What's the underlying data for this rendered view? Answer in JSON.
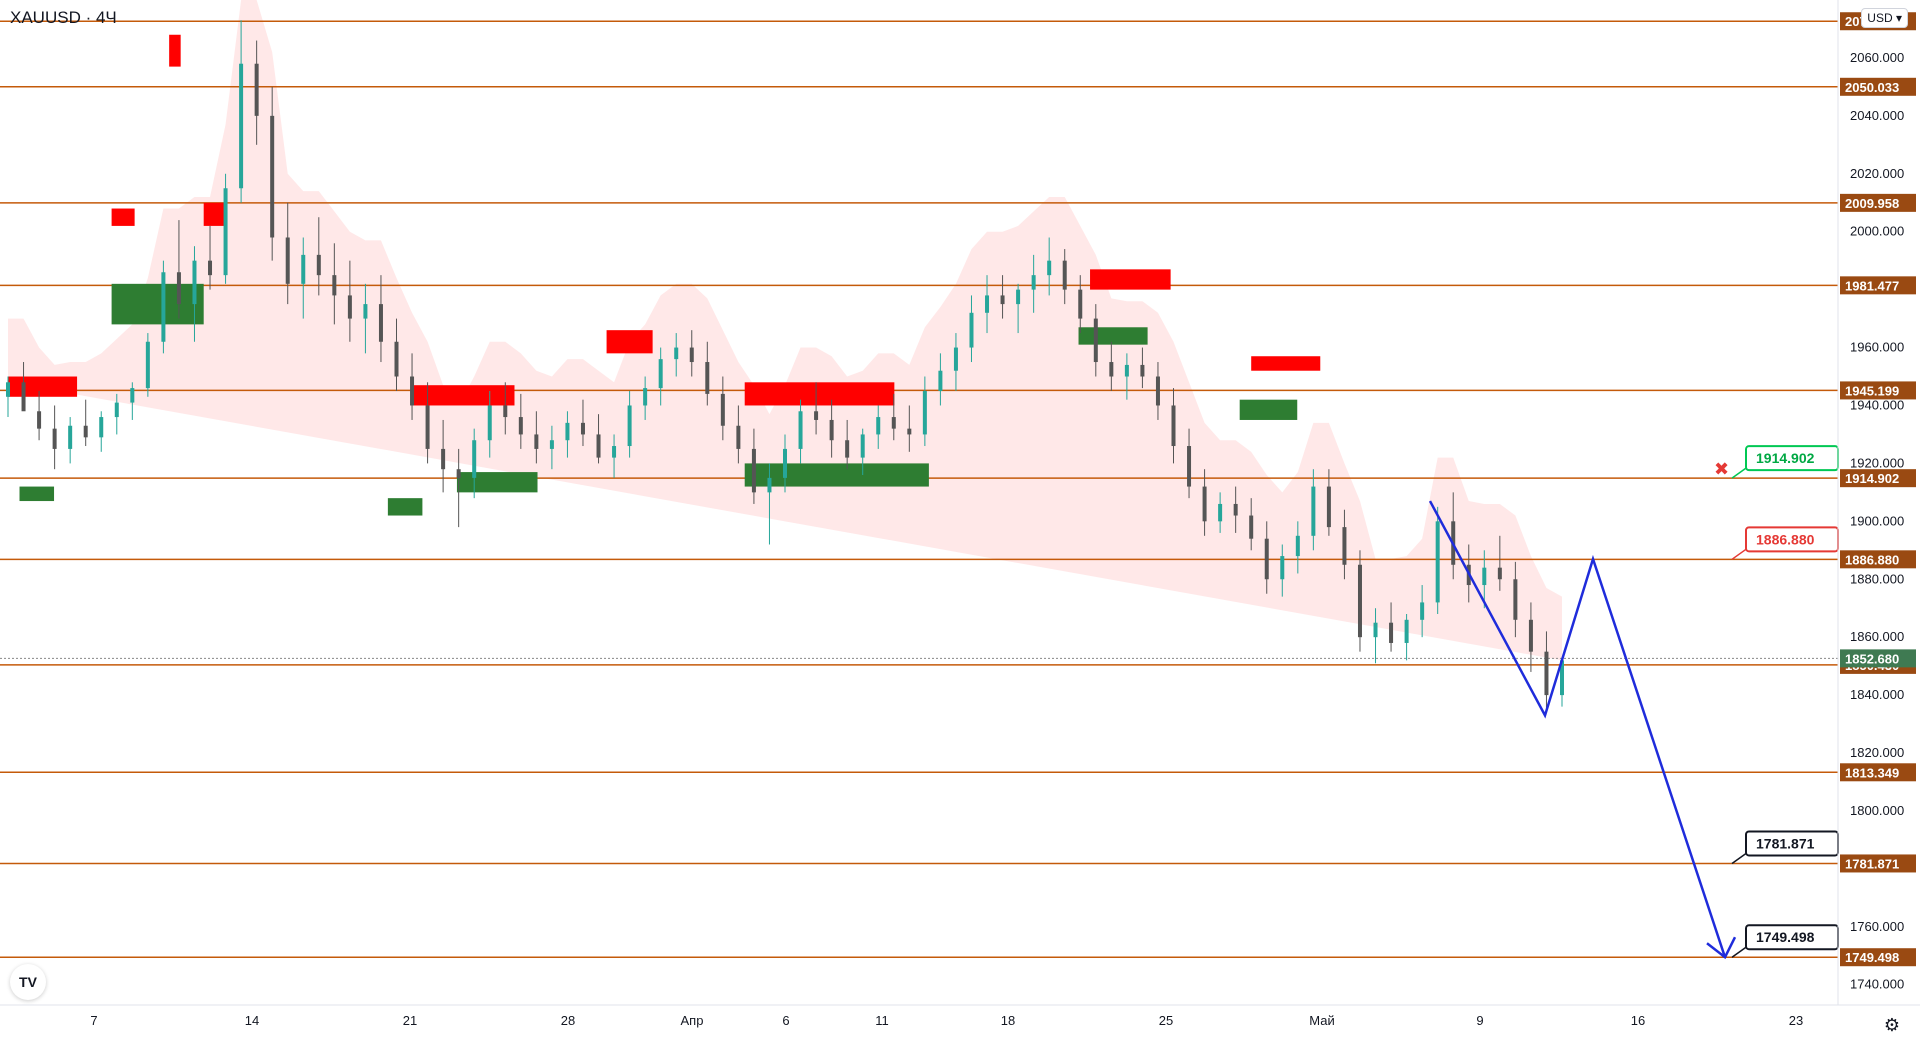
{
  "header": {
    "ticker": "XAUUSD · 4Ч",
    "currency": "USD",
    "axis_top_label": "2"
  },
  "colors": {
    "level_line": "#c45a0a",
    "level_label_bg": "#9a4a12",
    "supply_zone": "#ff0000",
    "demand_zone": "#2e7d32",
    "bull_candle": "#26a69a",
    "bear_candle": "#555555",
    "trail_red": "#b71c1c",
    "trail_green": "#43a047",
    "fill_red": "#ffdede",
    "fill_green": "#e3f3e3",
    "projection": "#1f2cdb",
    "current_price_bg": "#3f7a52"
  },
  "icons": {
    "logo": "tradingview-logo-icon",
    "settings": "gear-icon",
    "cross": "red-x-mark-icon"
  },
  "chart_data": {
    "type": "candlestick",
    "ylim": [
      1733,
      2080
    ],
    "y_ticks": [
      "2060.000",
      "2040.000",
      "2020.000",
      "2000.000",
      "1960.000",
      "1940.000",
      "1920.000",
      "1900.000",
      "1880.000",
      "1860.000",
      "1840.000",
      "1820.000",
      "1800.000",
      "1760.000",
      "1740.000"
    ],
    "y_tick_values": [
      2060,
      2040,
      2020,
      2000,
      1960,
      1940,
      1920,
      1900,
      1880,
      1860,
      1840,
      1820,
      1800,
      1760,
      1740
    ],
    "x_ticks": [
      "7",
      "14",
      "21",
      "28",
      "Апр",
      "6",
      "11",
      "18",
      "25",
      "Май",
      "9",
      "16",
      "23"
    ],
    "levels": [
      {
        "label": "2072.667",
        "value": 2072.667
      },
      {
        "label": "2050.033",
        "value": 2050.033
      },
      {
        "label": "2009.958",
        "value": 2009.958
      },
      {
        "label": "1981.477",
        "value": 1981.477
      },
      {
        "label": "1945.199",
        "value": 1945.199
      },
      {
        "label": "1914.902",
        "value": 1914.902
      },
      {
        "label": "1886.880",
        "value": 1886.88
      },
      {
        "label": "1850.430",
        "value": 1850.43
      },
      {
        "label": "1813.349",
        "value": 1813.349
      },
      {
        "label": "1781.871",
        "value": 1781.871
      },
      {
        "label": "1749.498",
        "value": 1749.498
      }
    ],
    "current_price": {
      "label": "1852.680",
      "value": 1852.68
    },
    "callouts": [
      {
        "label": "1914.902",
        "value": 1914.902,
        "style": "green"
      },
      {
        "label": "1886.880",
        "value": 1886.88,
        "style": "red"
      },
      {
        "label": "1781.871",
        "value": 1781.871,
        "style": "black"
      },
      {
        "label": "1749.498",
        "value": 1749.498,
        "style": "black"
      }
    ],
    "projection_path": [
      [
        1910,
        1875
      ],
      [
        1930,
        1785
      ],
      [
        1950,
        1830
      ],
      [
        1975,
        1780
      ],
      [
        1999,
        1860
      ],
      [
        2030,
        1960
      ],
      [
        2055,
        2045
      ],
      [
        2090,
        2100
      ]
    ],
    "projection_prices": [
      1907,
      1833,
      1887,
      1749.5
    ],
    "candles": [
      [
        1943,
        1950,
        1936,
        1948
      ],
      [
        1948,
        1955,
        1940,
        1938
      ],
      [
        1938,
        1945,
        1928,
        1932
      ],
      [
        1932,
        1940,
        1918,
        1925
      ],
      [
        1925,
        1936,
        1920,
        1933
      ],
      [
        1933,
        1942,
        1926,
        1929
      ],
      [
        1929,
        1938,
        1924,
        1936
      ],
      [
        1936,
        1944,
        1930,
        1941
      ],
      [
        1941,
        1948,
        1935,
        1946
      ],
      [
        1946,
        1965,
        1943,
        1962
      ],
      [
        1962,
        1990,
        1958,
        1986
      ],
      [
        1986,
        2004,
        1970,
        1975
      ],
      [
        1975,
        1995,
        1962,
        1990
      ],
      [
        1990,
        2002,
        1980,
        1985
      ],
      [
        1985,
        2020,
        1982,
        2015
      ],
      [
        2015,
        2073,
        2010,
        2058
      ],
      [
        2058,
        2066,
        2030,
        2040
      ],
      [
        2040,
        2050,
        1990,
        1998
      ],
      [
        1998,
        2010,
        1975,
        1982
      ],
      [
        1982,
        1998,
        1970,
        1992
      ],
      [
        1992,
        2005,
        1978,
        1985
      ],
      [
        1985,
        1996,
        1968,
        1978
      ],
      [
        1978,
        1990,
        1962,
        1970
      ],
      [
        1970,
        1982,
        1958,
        1975
      ],
      [
        1975,
        1985,
        1955,
        1962
      ],
      [
        1962,
        1970,
        1945,
        1950
      ],
      [
        1950,
        1958,
        1935,
        1940
      ],
      [
        1940,
        1948,
        1920,
        1925
      ],
      [
        1925,
        1935,
        1910,
        1918
      ],
      [
        1918,
        1925,
        1898,
        1915
      ],
      [
        1915,
        1932,
        1908,
        1928
      ],
      [
        1928,
        1945,
        1922,
        1940
      ],
      [
        1940,
        1948,
        1930,
        1936
      ],
      [
        1936,
        1944,
        1925,
        1930
      ],
      [
        1930,
        1938,
        1920,
        1925
      ],
      [
        1925,
        1933,
        1918,
        1928
      ],
      [
        1928,
        1938,
        1922,
        1934
      ],
      [
        1934,
        1942,
        1926,
        1930
      ],
      [
        1930,
        1937,
        1920,
        1922
      ],
      [
        1922,
        1930,
        1915,
        1926
      ],
      [
        1926,
        1945,
        1922,
        1940
      ],
      [
        1940,
        1950,
        1935,
        1946
      ],
      [
        1946,
        1960,
        1940,
        1956
      ],
      [
        1956,
        1965,
        1950,
        1960
      ],
      [
        1960,
        1966,
        1950,
        1955
      ],
      [
        1955,
        1962,
        1940,
        1944
      ],
      [
        1944,
        1950,
        1928,
        1933
      ],
      [
        1933,
        1940,
        1920,
        1925
      ],
      [
        1925,
        1932,
        1906,
        1910
      ],
      [
        1910,
        1920,
        1892,
        1915
      ],
      [
        1915,
        1930,
        1910,
        1925
      ],
      [
        1925,
        1942,
        1920,
        1938
      ],
      [
        1938,
        1948,
        1930,
        1935
      ],
      [
        1935,
        1942,
        1922,
        1928
      ],
      [
        1928,
        1935,
        1918,
        1922
      ],
      [
        1922,
        1932,
        1916,
        1930
      ],
      [
        1930,
        1940,
        1925,
        1936
      ],
      [
        1936,
        1944,
        1928,
        1932
      ],
      [
        1932,
        1940,
        1924,
        1930
      ],
      [
        1930,
        1950,
        1926,
        1945
      ],
      [
        1945,
        1958,
        1940,
        1952
      ],
      [
        1952,
        1965,
        1945,
        1960
      ],
      [
        1960,
        1978,
        1955,
        1972
      ],
      [
        1972,
        1985,
        1965,
        1978
      ],
      [
        1978,
        1985,
        1970,
        1975
      ],
      [
        1975,
        1982,
        1965,
        1980
      ],
      [
        1980,
        1992,
        1972,
        1985
      ],
      [
        1985,
        1998,
        1978,
        1990
      ],
      [
        1990,
        1994,
        1975,
        1980
      ],
      [
        1980,
        1985,
        1965,
        1970
      ],
      [
        1970,
        1975,
        1950,
        1955
      ],
      [
        1955,
        1962,
        1945,
        1950
      ],
      [
        1950,
        1958,
        1942,
        1954
      ],
      [
        1954,
        1960,
        1946,
        1950
      ],
      [
        1950,
        1955,
        1935,
        1940
      ],
      [
        1940,
        1946,
        1920,
        1926
      ],
      [
        1926,
        1932,
        1908,
        1912
      ],
      [
        1912,
        1918,
        1895,
        1900
      ],
      [
        1900,
        1910,
        1896,
        1906
      ],
      [
        1906,
        1912,
        1896,
        1902
      ],
      [
        1902,
        1908,
        1890,
        1894
      ],
      [
        1894,
        1900,
        1875,
        1880
      ],
      [
        1880,
        1892,
        1874,
        1888
      ],
      [
        1888,
        1900,
        1882,
        1895
      ],
      [
        1895,
        1918,
        1890,
        1912
      ],
      [
        1912,
        1918,
        1895,
        1898
      ],
      [
        1898,
        1904,
        1880,
        1885
      ],
      [
        1885,
        1890,
        1855,
        1860
      ],
      [
        1860,
        1870,
        1851,
        1865
      ],
      [
        1865,
        1872,
        1855,
        1858
      ],
      [
        1858,
        1868,
        1852,
        1866
      ],
      [
        1866,
        1878,
        1860,
        1872
      ],
      [
        1872,
        1905,
        1868,
        1900
      ],
      [
        1900,
        1910,
        1880,
        1885
      ],
      [
        1885,
        1892,
        1872,
        1878
      ],
      [
        1878,
        1890,
        1870,
        1884
      ],
      [
        1884,
        1895,
        1876,
        1880
      ],
      [
        1880,
        1886,
        1860,
        1866
      ],
      [
        1866,
        1872,
        1848,
        1855
      ],
      [
        1855,
        1862,
        1834,
        1840
      ],
      [
        1840,
        1853,
        1836,
        1852
      ]
    ]
  }
}
